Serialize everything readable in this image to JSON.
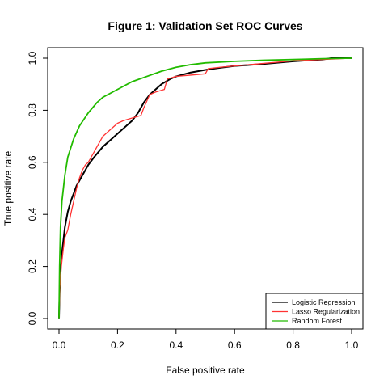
{
  "chart_data": {
    "type": "line",
    "title": "Figure 1: Validation Set ROC Curves",
    "xlabel": "False positive rate",
    "ylabel": "True positive rate",
    "xlim": [
      0,
      1
    ],
    "ylim": [
      0,
      1
    ],
    "xticks": [
      0.0,
      0.2,
      0.4,
      0.6,
      0.8,
      1.0
    ],
    "xtick_labels": [
      "0.0",
      "0.2",
      "0.4",
      "0.6",
      "0.8",
      "1.0"
    ],
    "yticks": [
      0.0,
      0.2,
      0.4,
      0.6,
      0.8,
      1.0
    ],
    "ytick_labels": [
      "0.0",
      "0.2",
      "0.4",
      "0.6",
      "0.8",
      "1.0"
    ],
    "grid": false,
    "legend_position": "bottom-right",
    "series": [
      {
        "name": "Logistic Regression",
        "color": "#000000",
        "x": [
          0,
          0.002,
          0.005,
          0.01,
          0.015,
          0.02,
          0.03,
          0.04,
          0.05,
          0.06,
          0.08,
          0.1,
          0.12,
          0.15,
          0.18,
          0.2,
          0.22,
          0.25,
          0.27,
          0.29,
          0.31,
          0.33,
          0.35,
          0.38,
          0.4,
          0.45,
          0.5,
          0.55,
          0.6,
          0.7,
          0.8,
          0.9,
          0.93,
          1.0
        ],
        "y": [
          0,
          0.1,
          0.18,
          0.25,
          0.3,
          0.35,
          0.41,
          0.45,
          0.48,
          0.51,
          0.55,
          0.59,
          0.62,
          0.66,
          0.69,
          0.71,
          0.73,
          0.76,
          0.79,
          0.83,
          0.86,
          0.88,
          0.9,
          0.92,
          0.93,
          0.945,
          0.955,
          0.963,
          0.97,
          0.978,
          0.988,
          0.995,
          1.0,
          1.0
        ]
      },
      {
        "name": "Lasso Regularization",
        "color": "#ff3333",
        "x": [
          0,
          0.003,
          0.008,
          0.015,
          0.02,
          0.03,
          0.04,
          0.05,
          0.06,
          0.07,
          0.08,
          0.09,
          0.1,
          0.12,
          0.13,
          0.15,
          0.17,
          0.2,
          0.22,
          0.25,
          0.28,
          0.29,
          0.31,
          0.33,
          0.36,
          0.37,
          0.4,
          0.45,
          0.5,
          0.51,
          0.55,
          0.6,
          0.7,
          0.8,
          0.9,
          1.0
        ],
        "y": [
          0,
          0.12,
          0.2,
          0.27,
          0.31,
          0.34,
          0.4,
          0.45,
          0.5,
          0.54,
          0.57,
          0.59,
          0.6,
          0.64,
          0.66,
          0.7,
          0.72,
          0.75,
          0.76,
          0.77,
          0.78,
          0.81,
          0.86,
          0.87,
          0.88,
          0.92,
          0.93,
          0.935,
          0.94,
          0.96,
          0.965,
          0.97,
          0.98,
          0.99,
          0.995,
          1.0
        ]
      },
      {
        "name": "Random Forest",
        "color": "#22bb00",
        "x": [
          0,
          0.002,
          0.005,
          0.01,
          0.02,
          0.03,
          0.05,
          0.07,
          0.1,
          0.13,
          0.15,
          0.2,
          0.25,
          0.3,
          0.35,
          0.4,
          0.45,
          0.5,
          0.6,
          0.7,
          0.8,
          0.9,
          1.0
        ],
        "y": [
          0,
          0.2,
          0.35,
          0.45,
          0.55,
          0.62,
          0.69,
          0.74,
          0.79,
          0.83,
          0.85,
          0.88,
          0.91,
          0.93,
          0.95,
          0.965,
          0.975,
          0.982,
          0.988,
          0.992,
          0.995,
          0.998,
          1.0
        ]
      }
    ]
  }
}
